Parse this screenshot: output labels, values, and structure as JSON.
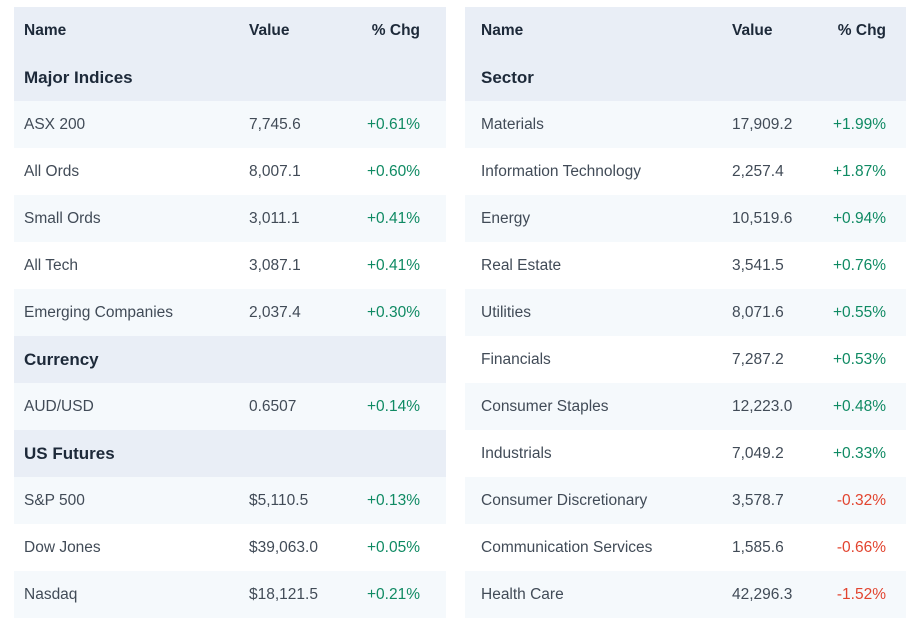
{
  "colors": {
    "header_bg": "#e9eef6",
    "stripe_bg": "#f5f9fc",
    "row_bg": "#ffffff",
    "positive": "#0f8a63",
    "negative": "#e2442f",
    "heading_text": "#1d2939",
    "body_text": "#414b57"
  },
  "tables": {
    "indices": {
      "columns": {
        "name": "Name",
        "value": "Value",
        "chg": "% Chg"
      },
      "rows": [
        {
          "type": "section",
          "name": "Major Indices"
        },
        {
          "type": "data",
          "name": "ASX 200",
          "value": "7,745.6",
          "chg": "+0.61%",
          "trend": "up"
        },
        {
          "type": "data",
          "name": "All Ords",
          "value": "8,007.1",
          "chg": "+0.60%",
          "trend": "up"
        },
        {
          "type": "data",
          "name": "Small Ords",
          "value": "3,011.1",
          "chg": "+0.41%",
          "trend": "up"
        },
        {
          "type": "data",
          "name": "All Tech",
          "value": "3,087.1",
          "chg": "+0.41%",
          "trend": "up"
        },
        {
          "type": "data",
          "name": "Emerging Companies",
          "value": "2,037.4",
          "chg": "+0.30%",
          "trend": "up"
        },
        {
          "type": "section",
          "name": "Currency"
        },
        {
          "type": "data",
          "name": "AUD/USD",
          "value": "0.6507",
          "chg": "+0.14%",
          "trend": "up"
        },
        {
          "type": "section",
          "name": "US Futures"
        },
        {
          "type": "data",
          "name": "S&P 500",
          "value": "$5,110.5",
          "chg": "+0.13%",
          "trend": "up"
        },
        {
          "type": "data",
          "name": "Dow Jones",
          "value": "$39,063.0",
          "chg": "+0.05%",
          "trend": "up"
        },
        {
          "type": "data",
          "name": "Nasdaq",
          "value": "$18,121.5",
          "chg": "+0.21%",
          "trend": "up"
        }
      ]
    },
    "sectors": {
      "columns": {
        "name": "Name",
        "value": "Value",
        "chg": "% Chg"
      },
      "rows": [
        {
          "type": "section",
          "name": "Sector"
        },
        {
          "type": "data",
          "name": "Materials",
          "value": "17,909.2",
          "chg": "+1.99%",
          "trend": "up"
        },
        {
          "type": "data",
          "name": "Information Technology",
          "value": "2,257.4",
          "chg": "+1.87%",
          "trend": "up"
        },
        {
          "type": "data",
          "name": "Energy",
          "value": "10,519.6",
          "chg": "+0.94%",
          "trend": "up"
        },
        {
          "type": "data",
          "name": "Real Estate",
          "value": "3,541.5",
          "chg": "+0.76%",
          "trend": "up"
        },
        {
          "type": "data",
          "name": "Utilities",
          "value": "8,071.6",
          "chg": "+0.55%",
          "trend": "up"
        },
        {
          "type": "data",
          "name": "Financials",
          "value": "7,287.2",
          "chg": "+0.53%",
          "trend": "up"
        },
        {
          "type": "data",
          "name": "Consumer Staples",
          "value": "12,223.0",
          "chg": "+0.48%",
          "trend": "up"
        },
        {
          "type": "data",
          "name": "Industrials",
          "value": "7,049.2",
          "chg": "+0.33%",
          "trend": "up"
        },
        {
          "type": "data",
          "name": "Consumer Discretionary",
          "value": "3,578.7",
          "chg": "-0.32%",
          "trend": "down"
        },
        {
          "type": "data",
          "name": "Communication Services",
          "value": "1,585.6",
          "chg": "-0.66%",
          "trend": "down"
        },
        {
          "type": "data",
          "name": "Health Care",
          "value": "42,296.3",
          "chg": "-1.52%",
          "trend": "down"
        }
      ]
    }
  }
}
